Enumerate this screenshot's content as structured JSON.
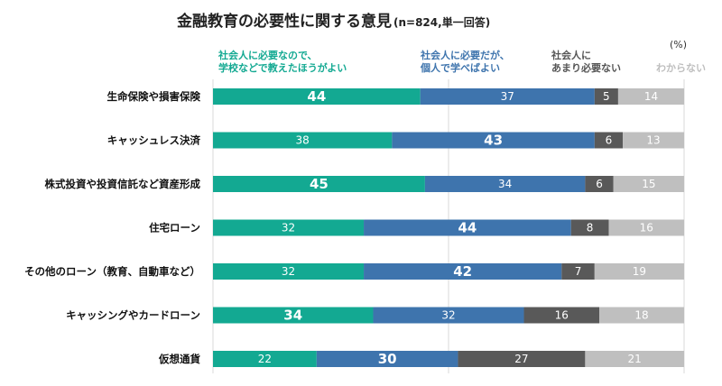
{
  "chart_data": {
    "type": "bar",
    "stacked": true,
    "orientation": "horizontal",
    "title": "金融教育の必要性に関する意見",
    "subtitle": "(n=824,単一回答)",
    "unit": "(%)",
    "xlim": [
      0,
      100
    ],
    "categories": [
      "生命保険や損害保険",
      "キャッシュレス決済",
      "株式投資や投資信託など資産形成",
      "住宅ローン",
      "その他のローン（教育、自動車など）",
      "キャッシングやカードローン",
      "仮想通貨"
    ],
    "series": [
      {
        "name": "社会人に必要なので、学校などで教えたほうがよい",
        "legend_lines": [
          "社会人に必要なので、",
          "学校などで教えたほうがよい"
        ],
        "color": "#13a992",
        "values": [
          44,
          38,
          45,
          32,
          32,
          34,
          22
        ]
      },
      {
        "name": "社会人に必要だが、個人で学べばよい",
        "legend_lines": [
          "社会人に必要だが、",
          "個人で学べばよい"
        ],
        "color": "#3e74ad",
        "values": [
          37,
          43,
          34,
          44,
          42,
          32,
          30
        ]
      },
      {
        "name": "社会人にあまり必要ない",
        "legend_lines": [
          "社会人に",
          "あまり必要ない"
        ],
        "color": "#595959",
        "legend_color": "#555555",
        "values": [
          5,
          6,
          6,
          8,
          7,
          16,
          27
        ]
      },
      {
        "name": "わからない",
        "legend_lines": [
          "わからない"
        ],
        "color": "#bfbfbf",
        "values": [
          14,
          13,
          15,
          16,
          19,
          18,
          21
        ]
      }
    ],
    "emphasized_values": [
      [
        0,
        0
      ],
      [
        1,
        1
      ],
      [
        2,
        0
      ],
      [
        3,
        1
      ],
      [
        4,
        1
      ],
      [
        5,
        0
      ],
      [
        6,
        1
      ]
    ]
  }
}
